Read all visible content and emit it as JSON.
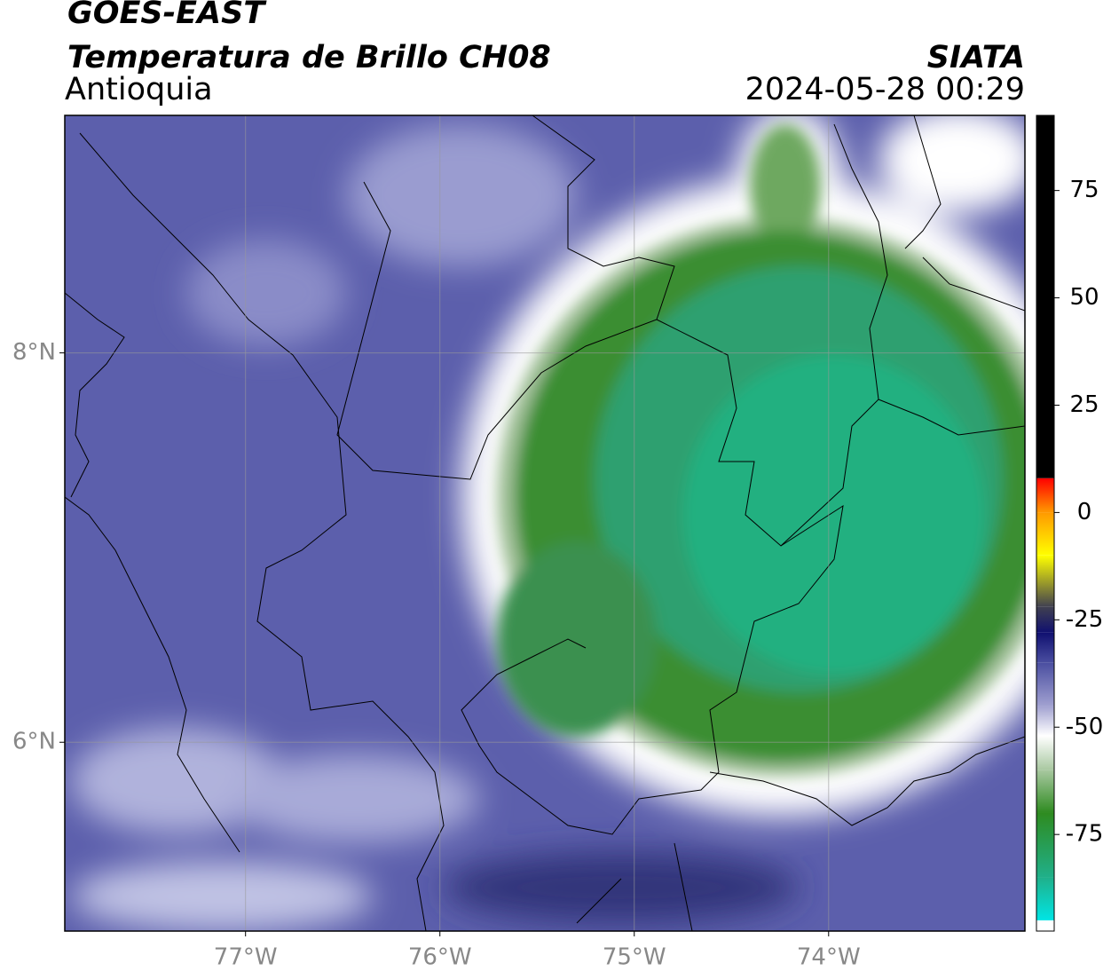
{
  "chart_data": {
    "type": "map",
    "title": "GOES-EAST",
    "subtitle": "Temperatura de Brillo CH08",
    "region": "Antioquia",
    "source": "SIATA",
    "datetime": "2024-05-28 00:29",
    "xlim": [
      -77.93,
      -72.99
    ],
    "ylim": [
      5.03,
      9.22
    ],
    "xticks": [
      {
        "value": -77,
        "label": "77°W"
      },
      {
        "value": -76,
        "label": "76°W"
      },
      {
        "value": -75,
        "label": "75°W"
      },
      {
        "value": -74,
        "label": "74°W"
      }
    ],
    "yticks": [
      {
        "value": 6,
        "label": "6°N"
      },
      {
        "value": 8,
        "label": "8°N"
      }
    ],
    "grid": true,
    "colorbar": {
      "lim": [
        -97.5,
        92.5
      ],
      "ticks": [
        -75,
        -50,
        -25,
        0,
        25,
        50,
        75
      ],
      "stops": [
        {
          "value": -97.5,
          "color": "#ffffff"
        },
        {
          "value": -95,
          "color": "#ffffff"
        },
        {
          "value": -95,
          "color": "#00e5e5"
        },
        {
          "value": -85,
          "color": "#20b08a"
        },
        {
          "value": -70,
          "color": "#2e8b20"
        },
        {
          "value": -60,
          "color": "#a8c8a0"
        },
        {
          "value": -52,
          "color": "#ffffff"
        },
        {
          "value": -45,
          "color": "#a0a0d0"
        },
        {
          "value": -35,
          "color": "#4a4ea0"
        },
        {
          "value": -28,
          "color": "#101070"
        },
        {
          "value": -22,
          "color": "#404050"
        },
        {
          "value": -10,
          "color": "#ffff00"
        },
        {
          "value": 0,
          "color": "#ff9900"
        },
        {
          "value": 8,
          "color": "#ff0000"
        },
        {
          "value": 8,
          "color": "#000000"
        },
        {
          "value": 92.5,
          "color": "#000000"
        }
      ]
    }
  }
}
